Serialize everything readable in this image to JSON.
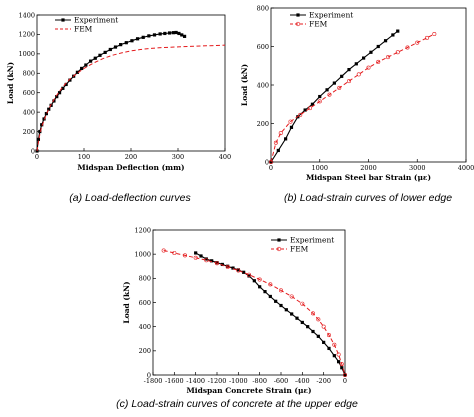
{
  "chart_data": [
    {
      "type": "line",
      "caption": "(a) Load-deflection curves",
      "xlabel": "Midspan  Deflection (mm)",
      "ylabel": "Load (kN)",
      "xlim": [
        0,
        400
      ],
      "ylim": [
        0,
        1400
      ],
      "xticks": [
        0,
        100,
        200,
        300,
        400
      ],
      "yticks": [
        0,
        200,
        400,
        600,
        800,
        1000,
        1200,
        1400
      ],
      "legend": "top-left",
      "series": [
        {
          "name": "Experiment",
          "color": "#000000",
          "marker": "square-filled",
          "x": [
            0,
            3,
            6,
            10,
            15,
            20,
            25,
            30,
            36,
            42,
            48,
            55,
            62,
            70,
            78,
            86,
            95,
            104,
            114,
            124,
            134,
            145,
            156,
            167,
            178,
            190,
            202,
            214,
            226,
            238,
            250,
            262,
            272,
            282,
            290,
            296,
            302,
            308,
            314
          ],
          "y": [
            0,
            120,
            200,
            270,
            330,
            385,
            430,
            470,
            515,
            560,
            600,
            645,
            685,
            730,
            770,
            810,
            850,
            885,
            925,
            955,
            985,
            1015,
            1045,
            1070,
            1095,
            1115,
            1135,
            1155,
            1170,
            1185,
            1195,
            1205,
            1210,
            1215,
            1218,
            1220,
            1210,
            1195,
            1180
          ]
        },
        {
          "name": "FEM",
          "color": "#e41a1c",
          "marker": "dash",
          "x": [
            0,
            5,
            10,
            20,
            30,
            40,
            50,
            60,
            70,
            80,
            100,
            120,
            140,
            160,
            180,
            200,
            220,
            240,
            260,
            280,
            300,
            320,
            340,
            360,
            380,
            400
          ],
          "y": [
            0,
            150,
            250,
            380,
            480,
            560,
            630,
            690,
            740,
            780,
            850,
            905,
            950,
            985,
            1010,
            1030,
            1045,
            1055,
            1062,
            1068,
            1072,
            1076,
            1080,
            1083,
            1086,
            1090
          ]
        }
      ]
    },
    {
      "type": "line",
      "caption": "(b) Load-strain curves of lower edge",
      "xlabel": "Midspan Steel bar Strain (με)",
      "ylabel": "Load (kN)",
      "xlim": [
        0,
        4000
      ],
      "ylim": [
        0,
        800
      ],
      "xticks": [
        0,
        1000,
        2000,
        3000,
        4000
      ],
      "yticks": [
        0,
        200,
        400,
        600,
        800
      ],
      "legend": "top-left",
      "series": [
        {
          "name": "Experiment",
          "color": "#000000",
          "marker": "square-filled",
          "x": [
            0,
            150,
            300,
            420,
            550,
            700,
            850,
            1000,
            1150,
            1300,
            1450,
            1600,
            1750,
            1900,
            2050,
            2200,
            2350,
            2500,
            2600
          ],
          "y": [
            0,
            60,
            120,
            180,
            235,
            270,
            300,
            340,
            375,
            410,
            445,
            480,
            510,
            540,
            570,
            600,
            630,
            660,
            680
          ]
        },
        {
          "name": "FEM",
          "color": "#e41a1c",
          "marker": "circle-open",
          "x": [
            0,
            100,
            200,
            400,
            600,
            800,
            1000,
            1200,
            1400,
            1600,
            1800,
            2000,
            2200,
            2400,
            2600,
            2800,
            3000,
            3200,
            3350
          ],
          "y": [
            0,
            100,
            150,
            210,
            245,
            280,
            315,
            350,
            385,
            420,
            455,
            490,
            520,
            545,
            570,
            595,
            620,
            645,
            665
          ]
        }
      ]
    },
    {
      "type": "line",
      "caption": "(c) Load-strain curves of concrete at the upper edge",
      "xlabel": "Midspan Concrete Strain (με)",
      "ylabel": "Load (kN)",
      "xlim": [
        -1800,
        0
      ],
      "ylim": [
        0,
        1200
      ],
      "xticks": [
        -1800,
        -1600,
        -1400,
        -1200,
        -1000,
        -800,
        -600,
        -400,
        -200,
        0
      ],
      "yticks": [
        0,
        200,
        400,
        600,
        800,
        1000,
        1200
      ],
      "legend": "top-right",
      "series": [
        {
          "name": "Experiment",
          "color": "#000000",
          "marker": "square-filled",
          "x": [
            -1400,
            -1350,
            -1300,
            -1250,
            -1200,
            -1150,
            -1100,
            -1050,
            -1000,
            -950,
            -900,
            -850,
            -800,
            -750,
            -700,
            -650,
            -600,
            -550,
            -500,
            -450,
            -400,
            -350,
            -300,
            -250,
            -200,
            -150,
            -100,
            -60,
            -30,
            0
          ],
          "y": [
            1010,
            985,
            960,
            945,
            930,
            915,
            900,
            885,
            870,
            850,
            820,
            780,
            730,
            690,
            650,
            610,
            575,
            540,
            505,
            470,
            435,
            400,
            360,
            320,
            270,
            220,
            160,
            110,
            60,
            0
          ]
        },
        {
          "name": "FEM",
          "color": "#e41a1c",
          "marker": "circle-open",
          "x": [
            -1700,
            -1600,
            -1500,
            -1400,
            -1300,
            -1200,
            -1100,
            -1000,
            -900,
            -800,
            -700,
            -600,
            -500,
            -400,
            -300,
            -250,
            -200,
            -150,
            -100,
            -60,
            -30,
            0
          ],
          "y": [
            1030,
            1010,
            990,
            970,
            950,
            925,
            895,
            865,
            830,
            790,
            750,
            700,
            650,
            590,
            510,
            460,
            400,
            330,
            250,
            170,
            90,
            0
          ]
        }
      ]
    }
  ]
}
